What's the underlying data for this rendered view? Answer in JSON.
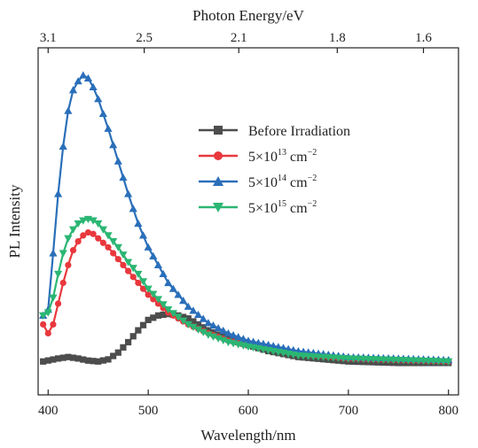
{
  "chart_data": {
    "type": "line",
    "xlabel": "Wavelength/nm",
    "ylabel": "PL Intensity",
    "x2label": "Photon Energy/eV",
    "xlim": [
      390,
      810
    ],
    "ylim": [
      0,
      1
    ],
    "x_ticks": [
      400,
      500,
      600,
      700,
      800
    ],
    "x2_ticks": [
      {
        "label": "3.1",
        "energy": 3.1
      },
      {
        "label": "2.5",
        "energy": 2.5
      },
      {
        "label": "2.1",
        "energy": 2.1
      },
      {
        "label": "1.8",
        "energy": 1.8
      },
      {
        "label": "1.6",
        "energy": 1.6
      }
    ],
    "grid": false,
    "legend_position": "top-right",
    "series": [
      {
        "name": "Before Irradiation",
        "legend": {
          "base": "Before Irradiation",
          "sup": "",
          "suffix": ""
        },
        "color": "#4d4d4d",
        "marker": "square",
        "x": [
          395,
          410,
          420,
          430,
          440,
          450,
          460,
          470,
          480,
          490,
          500,
          510,
          520,
          530,
          540,
          550,
          560,
          580,
          600,
          620,
          650,
          700,
          750,
          800
        ],
        "y": [
          0.035,
          0.045,
          0.05,
          0.045,
          0.038,
          0.035,
          0.042,
          0.065,
          0.1,
          0.14,
          0.175,
          0.19,
          0.195,
          0.19,
          0.18,
          0.16,
          0.14,
          0.11,
          0.09,
          0.07,
          0.05,
          0.035,
          0.03,
          0.03
        ]
      },
      {
        "name": "5×10^13 cm^−2",
        "legend": {
          "base": "5×10",
          "sup": "13",
          "suffix": " cm",
          "unit_sup": "−2"
        },
        "color": "#e8383d",
        "marker": "circle",
        "x": [
          395,
          400,
          405,
          410,
          415,
          420,
          425,
          430,
          435,
          440,
          445,
          450,
          460,
          470,
          480,
          490,
          500,
          520,
          540,
          560,
          580,
          600,
          650,
          700,
          750,
          800
        ],
        "y": [
          0.16,
          0.13,
          0.16,
          0.23,
          0.3,
          0.36,
          0.41,
          0.44,
          0.46,
          0.47,
          0.465,
          0.45,
          0.42,
          0.38,
          0.34,
          0.3,
          0.26,
          0.2,
          0.16,
          0.13,
          0.105,
          0.09,
          0.06,
          0.045,
          0.04,
          0.035
        ]
      },
      {
        "name": "5×10^14 cm^−2",
        "legend": {
          "base": "5×10",
          "sup": "14",
          "suffix": " cm",
          "unit_sup": "−2"
        },
        "color": "#2a6fba",
        "marker": "triangle-up",
        "x": [
          395,
          400,
          405,
          410,
          415,
          420,
          425,
          430,
          435,
          440,
          445,
          450,
          455,
          460,
          470,
          480,
          490,
          500,
          520,
          540,
          560,
          580,
          600,
          650,
          700,
          750,
          800
        ],
        "y": [
          0.19,
          0.21,
          0.4,
          0.6,
          0.76,
          0.88,
          0.95,
          0.98,
          1.0,
          0.99,
          0.96,
          0.92,
          0.87,
          0.82,
          0.71,
          0.6,
          0.5,
          0.42,
          0.3,
          0.22,
          0.165,
          0.13,
          0.105,
          0.07,
          0.05,
          0.045,
          0.04
        ]
      },
      {
        "name": "5×10^15 cm^−2",
        "legend": {
          "base": "5×10",
          "sup": "15",
          "suffix": " cm",
          "unit_sup": "−2"
        },
        "color": "#2bb673",
        "marker": "triangle-down",
        "x": [
          395,
          400,
          405,
          410,
          415,
          420,
          425,
          430,
          435,
          440,
          445,
          450,
          460,
          470,
          480,
          490,
          500,
          520,
          540,
          560,
          580,
          600,
          650,
          700,
          750,
          800
        ],
        "y": [
          0.19,
          0.2,
          0.25,
          0.33,
          0.4,
          0.45,
          0.48,
          0.5,
          0.51,
          0.515,
          0.51,
          0.5,
          0.46,
          0.42,
          0.37,
          0.33,
          0.28,
          0.21,
          0.16,
          0.125,
          0.1,
          0.085,
          0.055,
          0.045,
          0.04,
          0.035
        ]
      }
    ]
  }
}
